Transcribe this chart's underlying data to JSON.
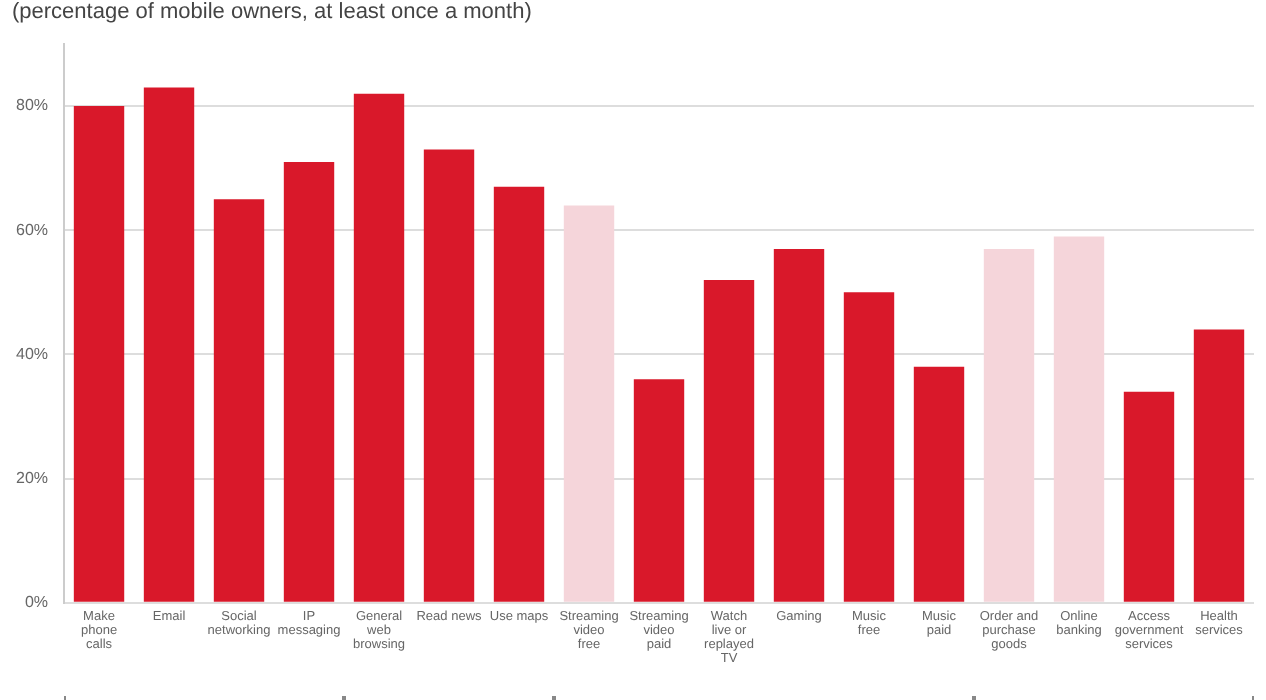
{
  "chart_data": {
    "type": "bar",
    "title": "(percentage of mobile owners, at least once a month)",
    "categories": [
      "Make phone calls",
      "Email",
      "Social networking",
      "IP messaging",
      "General web browsing",
      "Read news",
      "Use maps",
      "Streaming video free",
      "Streaming video paid",
      "Watch live or replayed TV",
      "Gaming",
      "Music free",
      "Music paid",
      "Order and purchase goods",
      "Online banking",
      "Access government services",
      "Health services"
    ],
    "values": [
      80,
      83,
      65,
      71,
      82,
      73,
      67,
      64,
      36,
      52,
      57,
      50,
      38,
      57,
      59,
      34,
      44
    ],
    "colors": [
      "#d9182a",
      "#d9182a",
      "#d9182a",
      "#d9182a",
      "#d9182a",
      "#d9182a",
      "#d9182a",
      "#f5d5da",
      "#d9182a",
      "#d9182a",
      "#d9182a",
      "#d9182a",
      "#d9182a",
      "#f5d5da",
      "#f5d5da",
      "#d9182a",
      "#d9182a"
    ],
    "ylim": [
      0,
      90
    ],
    "yticks": [
      {
        "value": 0,
        "label": "0%"
      },
      {
        "value": 20,
        "label": "20%"
      },
      {
        "value": 40,
        "label": "40%"
      },
      {
        "value": 60,
        "label": "60%"
      },
      {
        "value": 80,
        "label": "80%"
      }
    ],
    "grid": "y",
    "legend": false
  }
}
